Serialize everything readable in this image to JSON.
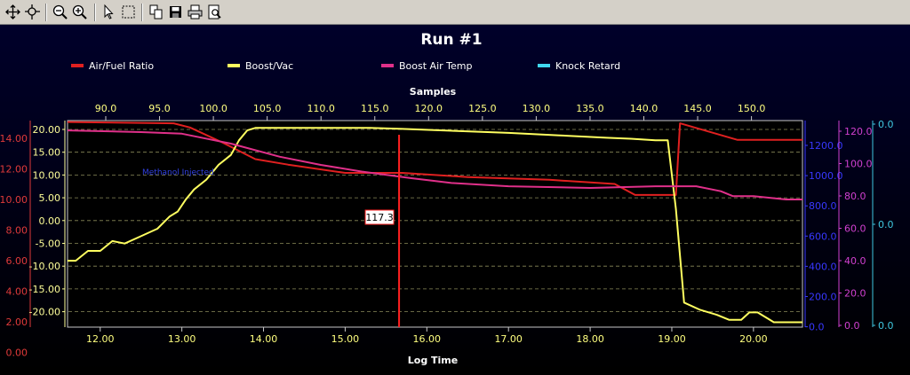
{
  "toolbar": {
    "buttons": [
      "pan-icon",
      "zoom-region-icon",
      "zoom-out-icon",
      "zoom-in-icon",
      "select-pointer-icon",
      "select-region-icon",
      "copy-icon",
      "save-icon",
      "print-icon",
      "print-preview-icon"
    ]
  },
  "chart_data": {
    "type": "line",
    "title": "Run #1",
    "xlabel": "Log Time",
    "x2label": "Samples",
    "xlim": [
      11.6,
      20.6
    ],
    "x_ticks": [
      "12.00",
      "13.00",
      "14.00",
      "15.00",
      "16.00",
      "17.00",
      "18.00",
      "19.00",
      "20.00"
    ],
    "samples_ticks": [
      "90.0",
      "95.0",
      "100.0",
      "105.0",
      "110.0",
      "115.0",
      "120.0",
      "125.0",
      "130.0",
      "135.0",
      "140.0",
      "145.0",
      "150.0"
    ],
    "cursor": {
      "x": 15.66,
      "label": "117.3"
    },
    "annotation": "Methanol Injected",
    "legend": [
      "Air/Fuel Ratio",
      "Boost/Vac",
      "Boost Air Temp",
      "Knock Retard"
    ],
    "axes": {
      "afr": {
        "ticks": [
          "14.00",
          "12.00",
          "10.00",
          "8.00",
          "6.00",
          "4.00",
          "2.00",
          "0.00"
        ],
        "color": "#e03a3a"
      },
      "boost": {
        "ticks": [
          "20.00",
          "15.00",
          "10.00",
          "5.00",
          "0.00",
          "-5.00",
          "-10.00",
          "-15.00",
          "-20.00"
        ],
        "color": "#ffff99"
      },
      "rpm": {
        "ticks": [
          "1200.0",
          "1000.0",
          "800.0",
          "600.0",
          "400.0",
          "200.0",
          "0.0"
        ],
        "color": "#3838ff"
      },
      "temp": {
        "ticks": [
          "120.0",
          "100.0",
          "80.0",
          "60.0",
          "40.0",
          "20.0",
          "0.0"
        ],
        "color": "#d040d0"
      },
      "knock": {
        "ticks": [
          "0.0",
          "0.0",
          "0.0"
        ],
        "color": "#40c8e0"
      }
    },
    "series": [
      {
        "name": "Air/Fuel Ratio",
        "color": "#e02020",
        "axis": "afr",
        "ylim": [
          -0.4,
          14.6
        ],
        "x": [
          11.6,
          12.9,
          13.1,
          13.5,
          13.9,
          14.3,
          15.0,
          15.7,
          16.5,
          17.5,
          18.3,
          18.55,
          18.8,
          19.05,
          19.1,
          19.8,
          20.6
        ],
        "y": [
          14.5,
          14.4,
          14.1,
          13.0,
          11.8,
          11.4,
          10.8,
          10.8,
          10.5,
          10.3,
          10.0,
          9.2,
          9.2,
          9.2,
          14.4,
          13.2,
          13.2
        ]
      },
      {
        "name": "Boost/Vac",
        "color": "#ffff60",
        "axis": "boost",
        "ylim": [
          -21,
          21
        ],
        "x": [
          11.6,
          11.7,
          11.85,
          12.0,
          12.15,
          12.3,
          12.5,
          12.7,
          12.85,
          12.95,
          13.05,
          13.15,
          13.3,
          13.45,
          13.6,
          13.7,
          13.8,
          13.9,
          14.5,
          15.3,
          15.7,
          16.2,
          17.0,
          17.6,
          18.2,
          18.5,
          18.8,
          18.95,
          19.05,
          19.15,
          19.35,
          19.55,
          19.7,
          19.85,
          19.95,
          20.05,
          20.15,
          20.25,
          20.6
        ],
        "y": [
          -7.5,
          -7.5,
          -5.5,
          -5.5,
          -3.5,
          -4,
          -2.5,
          -1,
          1.5,
          2.5,
          5,
          7,
          9,
          12,
          14,
          17,
          19,
          19.5,
          19.5,
          19.5,
          19.3,
          19,
          18.5,
          18,
          17.5,
          17.3,
          17,
          17,
          3,
          -16,
          -17.5,
          -18.5,
          -19.5,
          -19.5,
          -18,
          -18,
          -19,
          -20,
          -20
        ]
      },
      {
        "name": "Boost Air Temp",
        "color": "#e0308a",
        "axis": "temp",
        "ylim": [
          -0.7,
          125
        ],
        "x": [
          11.6,
          12.5,
          13.0,
          13.6,
          14.2,
          14.7,
          15.2,
          15.8,
          16.3,
          17.0,
          18.0,
          18.8,
          19.3,
          19.6,
          19.75,
          20.0,
          20.2,
          20.4,
          20.6
        ],
        "y": [
          119,
          118,
          117,
          111,
          103,
          98,
          94,
          90,
          87,
          85,
          84,
          85,
          85,
          82,
          79,
          79,
          78,
          77,
          77
        ]
      },
      {
        "name": "Knock Retard",
        "color": "#40d8f0",
        "axis": "knock",
        "x": [],
        "y": []
      }
    ]
  }
}
